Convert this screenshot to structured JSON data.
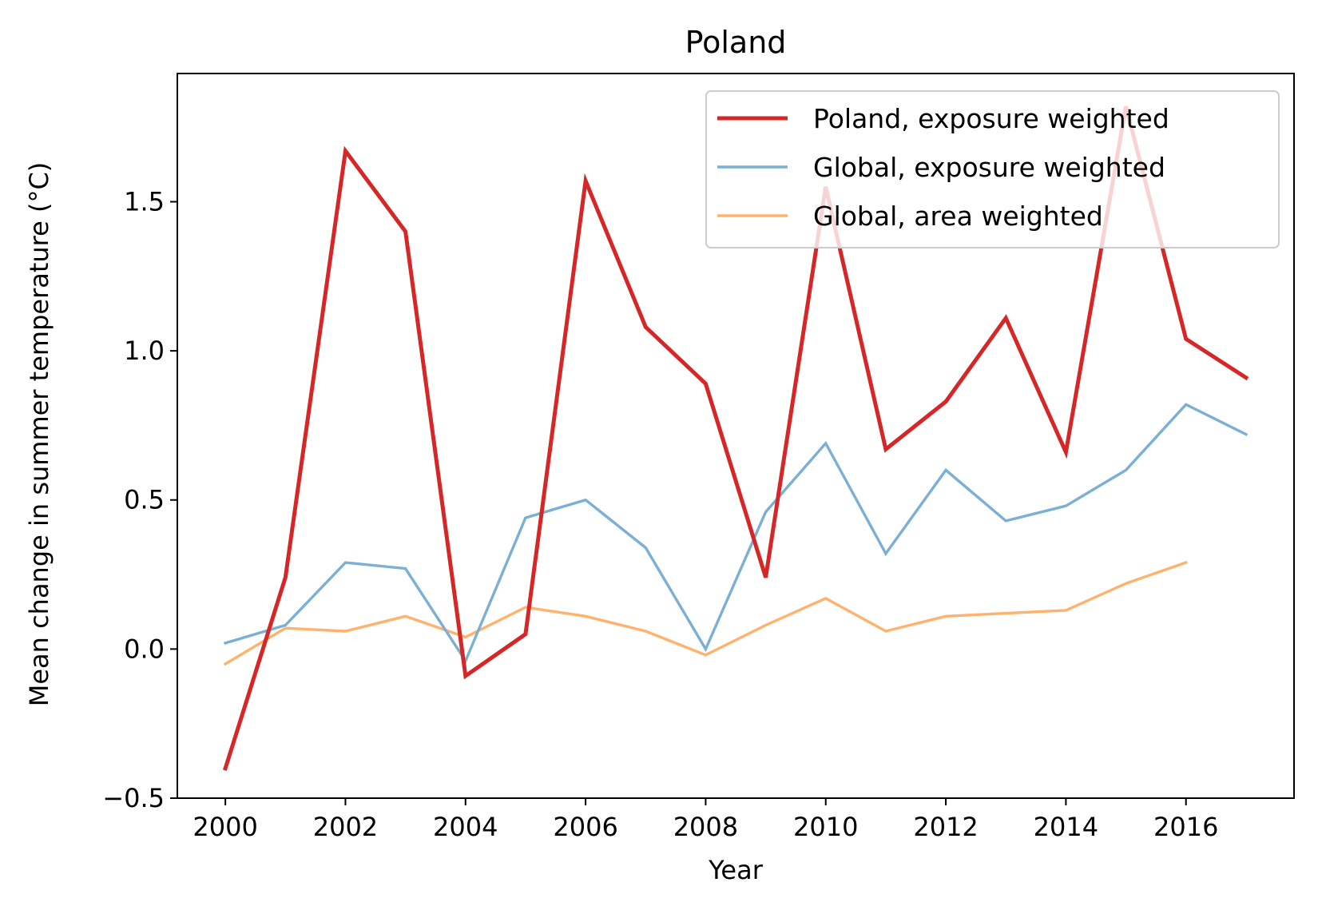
{
  "chart_data": {
    "type": "line",
    "title": "Poland",
    "xlabel": "Year",
    "ylabel": "Mean change in summer temperature (°C)",
    "xlim": [
      1999.2,
      2017.8
    ],
    "ylim": [
      -0.5,
      1.93
    ],
    "xticks": [
      2000,
      2002,
      2004,
      2006,
      2008,
      2010,
      2012,
      2014,
      2016
    ],
    "xtick_labels": [
      "2000",
      "2002",
      "2004",
      "2006",
      "2008",
      "2010",
      "2012",
      "2014",
      "2016"
    ],
    "yticks": [
      -0.5,
      0.0,
      0.5,
      1.0,
      1.5
    ],
    "ytick_labels": [
      "−0.5",
      "0.0",
      "0.5",
      "1.0",
      "1.5"
    ],
    "grid": false,
    "legend_position": "top-right",
    "series": [
      {
        "name": "Poland, exposure weighted",
        "color": "#d62728",
        "x": [
          2000,
          2001,
          2002,
          2003,
          2004,
          2005,
          2006,
          2007,
          2008,
          2009,
          2010,
          2011,
          2012,
          2013,
          2014,
          2015,
          2016,
          2017
        ],
        "y": [
          -0.4,
          0.24,
          1.67,
          1.4,
          -0.09,
          0.05,
          1.57,
          1.08,
          0.89,
          0.24,
          1.55,
          0.67,
          0.83,
          1.11,
          0.66,
          1.82,
          1.04,
          0.91
        ]
      },
      {
        "name": "Global, exposure weighted",
        "color": "#7bafd4",
        "x": [
          2000,
          2001,
          2002,
          2003,
          2004,
          2005,
          2006,
          2007,
          2008,
          2009,
          2010,
          2011,
          2012,
          2013,
          2014,
          2015,
          2016,
          2017
        ],
        "y": [
          0.02,
          0.08,
          0.29,
          0.27,
          -0.04,
          0.44,
          0.5,
          0.34,
          0.0,
          0.46,
          0.69,
          0.32,
          0.6,
          0.43,
          0.48,
          0.6,
          0.82,
          0.72
        ]
      },
      {
        "name": "Global, area weighted",
        "color": "#ffb26e",
        "x": [
          2000,
          2001,
          2002,
          2003,
          2004,
          2005,
          2006,
          2007,
          2008,
          2009,
          2010,
          2011,
          2012,
          2013,
          2014,
          2015,
          2016
        ],
        "y": [
          -0.05,
          0.07,
          0.06,
          0.11,
          0.04,
          0.14,
          0.11,
          0.06,
          -0.02,
          0.08,
          0.17,
          0.06,
          0.11,
          0.12,
          0.13,
          0.22,
          0.29
        ]
      }
    ]
  }
}
